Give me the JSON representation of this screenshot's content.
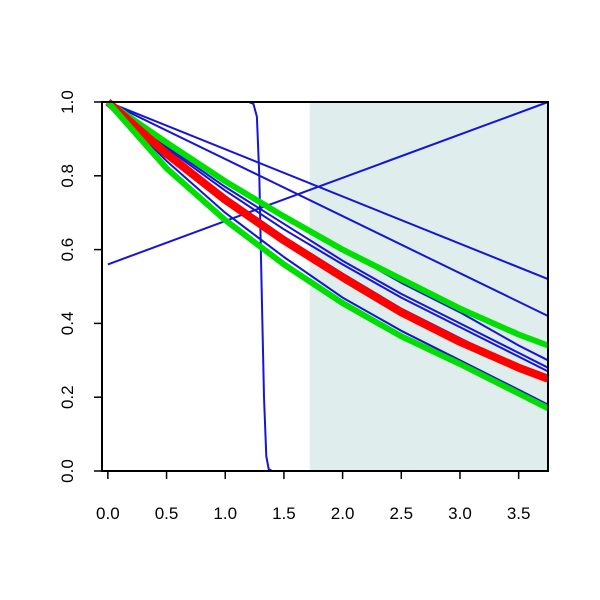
{
  "chart_data": {
    "type": "line",
    "title": "",
    "xlabel": "",
    "ylabel": "",
    "xlim": [
      -0.05,
      3.75
    ],
    "ylim": [
      0.0,
      1.0
    ],
    "x_ticks": [
      0.0,
      0.5,
      1.0,
      1.5,
      2.0,
      2.5,
      3.0,
      3.5
    ],
    "x_tick_labels": [
      "0.0",
      "0.5",
      "1.0",
      "1.5",
      "2.0",
      "2.5",
      "3.0",
      "3.5"
    ],
    "y_ticks": [
      0.0,
      0.2,
      0.4,
      0.6,
      0.8,
      1.0
    ],
    "y_tick_labels": [
      "0.0",
      "0.2",
      "0.4",
      "0.6",
      "0.8",
      "1.0"
    ],
    "grid": false,
    "shaded_region": {
      "x_from": 1.72,
      "x_to": 3.75,
      "color": "#e0eded"
    },
    "colors": {
      "thin_curves": "#1515d6",
      "red_band": "#ff0000",
      "green_band": "#00e000",
      "axes": "#000000"
    },
    "series": [
      {
        "color": "#1515d6",
        "width": 2,
        "x": [
          0.0,
          3.75
        ],
        "y": [
          1.0,
          0.52
        ]
      },
      {
        "color": "#1515d6",
        "width": 2,
        "x": [
          0.0,
          3.75
        ],
        "y": [
          1.0,
          0.42
        ]
      },
      {
        "color": "#1515d6",
        "width": 2,
        "x": [
          0.0,
          0.5,
          1.0,
          1.5,
          2.0,
          2.5,
          3.0,
          3.5,
          3.75
        ],
        "y": [
          1.0,
          0.89,
          0.79,
          0.69,
          0.6,
          0.51,
          0.43,
          0.34,
          0.3
        ]
      },
      {
        "color": "#1515d6",
        "width": 2,
        "x": [
          0.0,
          0.5,
          1.0,
          1.5,
          2.0,
          2.5,
          3.0,
          3.5,
          3.75
        ],
        "y": [
          1.0,
          0.88,
          0.77,
          0.67,
          0.57,
          0.48,
          0.4,
          0.32,
          0.28
        ]
      },
      {
        "color": "#1515d6",
        "width": 2,
        "x": [
          0.0,
          0.5,
          1.0,
          1.5,
          2.0,
          2.5,
          3.0,
          3.5,
          3.75
        ],
        "y": [
          1.0,
          0.875,
          0.76,
          0.655,
          0.56,
          0.47,
          0.39,
          0.31,
          0.27
        ]
      },
      {
        "color": "#1515d6",
        "width": 2,
        "x": [
          0.0,
          0.5,
          1.0,
          1.5,
          2.0,
          2.5,
          3.0,
          3.5,
          3.75
        ],
        "y": [
          1.0,
          0.865,
          0.745,
          0.635,
          0.535,
          0.44,
          0.36,
          0.28,
          0.25
        ]
      },
      {
        "color": "#1515d6",
        "width": 2,
        "x": [
          0.0,
          0.5,
          1.0,
          1.5,
          2.0,
          2.5,
          3.0,
          3.5,
          3.75
        ],
        "y": [
          1.0,
          0.84,
          0.7,
          0.58,
          0.47,
          0.38,
          0.3,
          0.22,
          0.18
        ]
      },
      {
        "color": "#1515d6",
        "width": 2,
        "x": [
          0.0,
          3.75
        ],
        "y": [
          0.56,
          1.0
        ]
      },
      {
        "color": "#1515d6",
        "width": 2,
        "x": [
          0.0,
          1.2,
          1.24,
          1.27,
          1.29,
          1.31,
          1.33,
          1.35,
          1.37,
          1.4,
          3.75
        ],
        "y": [
          1.0,
          1.0,
          0.995,
          0.96,
          0.8,
          0.5,
          0.2,
          0.04,
          0.005,
          0.0,
          0.0
        ]
      },
      {
        "color": "#00e000",
        "width": 6,
        "x": [
          0.0,
          0.5,
          1.0,
          1.5,
          2.0,
          2.5,
          3.0,
          3.5,
          3.75
        ],
        "y": [
          1.0,
          0.89,
          0.785,
          0.69,
          0.6,
          0.52,
          0.44,
          0.37,
          0.34
        ]
      },
      {
        "color": "#ff0000",
        "width": 8,
        "x": [
          0.0,
          0.5,
          1.0,
          1.5,
          2.0,
          2.5,
          3.0,
          3.5,
          3.75
        ],
        "y": [
          1.0,
          0.86,
          0.735,
          0.625,
          0.525,
          0.43,
          0.35,
          0.28,
          0.25
        ]
      },
      {
        "color": "#00e000",
        "width": 6,
        "x": [
          0.0,
          0.5,
          1.0,
          1.5,
          2.0,
          2.5,
          3.0,
          3.5,
          3.75
        ],
        "y": [
          1.0,
          0.82,
          0.68,
          0.56,
          0.455,
          0.365,
          0.29,
          0.21,
          0.17
        ]
      }
    ]
  }
}
